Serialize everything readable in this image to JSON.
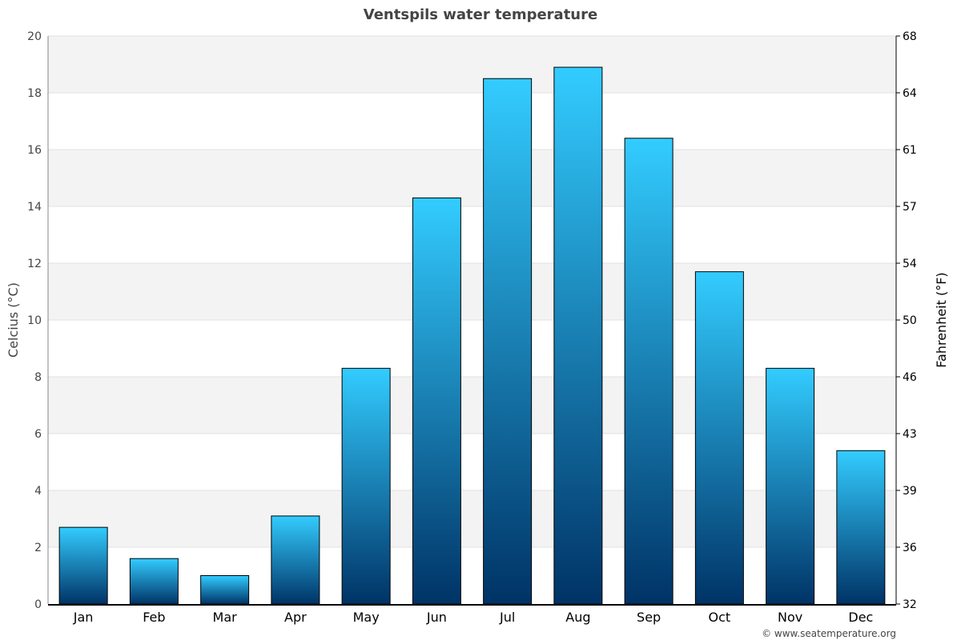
{
  "chart_data": {
    "type": "bar",
    "title": "Ventspils water temperature",
    "ylabel": "Celcius (°C)",
    "ylabel_right": "Fahrenheit (°F)",
    "categories": [
      "Jan",
      "Feb",
      "Mar",
      "Apr",
      "May",
      "Jun",
      "Jul",
      "Aug",
      "Sep",
      "Oct",
      "Nov",
      "Dec"
    ],
    "values": [
      2.7,
      1.6,
      1.0,
      3.1,
      8.3,
      14.3,
      18.5,
      18.9,
      16.4,
      11.7,
      8.3,
      5.4
    ],
    "ylim": [
      0,
      20
    ],
    "yticks": [
      "0",
      "2",
      "4",
      "6",
      "8",
      "10",
      "12",
      "14",
      "16",
      "18",
      "20"
    ],
    "yticks_right": [
      "32",
      "36",
      "39",
      "43",
      "46",
      "50",
      "54",
      "57",
      "61",
      "64",
      "68"
    ],
    "grid": true,
    "bar_gradient": {
      "top": "#33ccff",
      "bottom": "#003366"
    },
    "band_color": "#f3f3f3"
  },
  "footer": "© www.seatemperature.org"
}
